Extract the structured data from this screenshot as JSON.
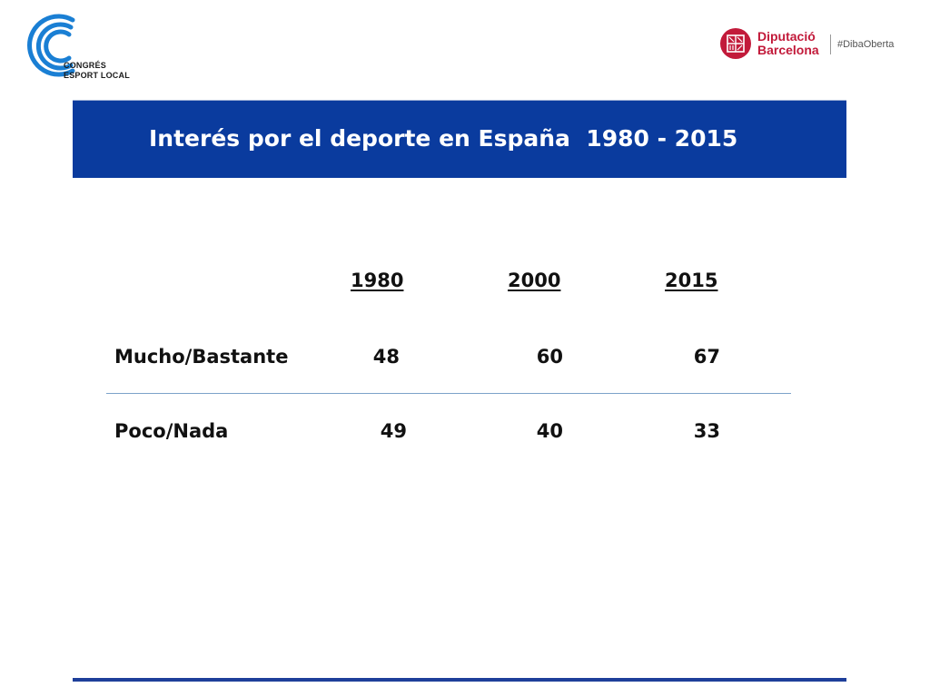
{
  "logos": {
    "left": {
      "line1": "CONGRÉS",
      "line2": "ESPORT LOCAL",
      "icon": "concentric-arcs-logo-icon",
      "color": "#1a7fd4"
    },
    "right": {
      "name_line1": "Diputació",
      "name_line2": "Barcelona",
      "hashtag": "#DibaOberta",
      "icon": "diputacio-seal-icon",
      "color": "#c21a3a"
    }
  },
  "title": "Interés por el deporte en España  1980 - 2015",
  "colors": {
    "title_band": "#0a3b9e",
    "divider": "#7da3c9",
    "bottom_rule": "#1e3f9a"
  },
  "table": {
    "years": [
      "1980",
      "2000",
      "2015"
    ],
    "rows": [
      {
        "label": "Mucho/Bastante",
        "values": [
          "48",
          "60",
          "67"
        ]
      },
      {
        "label": "Poco/Nada",
        "values": [
          "49",
          "40",
          "33"
        ]
      }
    ]
  }
}
